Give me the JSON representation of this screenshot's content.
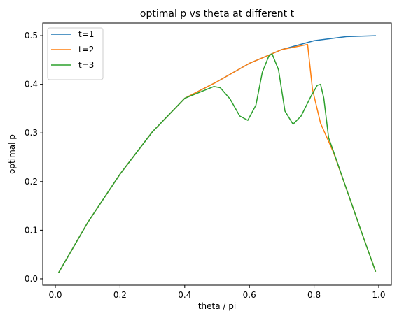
{
  "chart_data": {
    "type": "line",
    "title": "optimal p vs theta at different t",
    "xlabel": "theta / pi",
    "ylabel": "optimal p",
    "xlim": [
      -0.039,
      1.039
    ],
    "ylim": [
      -0.013,
      0.526
    ],
    "xticks": [
      0.0,
      0.2,
      0.4,
      0.6,
      0.8,
      1.0
    ],
    "xtick_labels": [
      "0.0",
      "0.2",
      "0.4",
      "0.6",
      "0.8",
      "1.0"
    ],
    "yticks": [
      0.0,
      0.1,
      0.2,
      0.3,
      0.4,
      0.5
    ],
    "ytick_labels": [
      "0.0",
      "0.1",
      "0.2",
      "0.3",
      "0.4",
      "0.5"
    ],
    "grid": false,
    "legend_position": "top-left",
    "series": [
      {
        "name": "t=1",
        "color": "#1f77b4",
        "x": [
          0.01,
          0.1,
          0.2,
          0.3,
          0.4,
          0.5,
          0.6,
          0.7,
          0.8,
          0.9,
          0.99
        ],
        "y": [
          0.0125,
          0.1158,
          0.2155,
          0.3023,
          0.3712,
          0.4054,
          0.4432,
          0.4714,
          0.4897,
          0.4981,
          0.5
        ]
      },
      {
        "name": "t=2",
        "color": "#ff7f0e",
        "x": [
          0.01,
          0.1,
          0.2,
          0.3,
          0.4,
          0.5,
          0.6,
          0.7,
          0.78,
          0.795,
          0.82,
          0.86,
          0.9,
          0.95,
          0.99
        ],
        "y": [
          0.0125,
          0.1158,
          0.2155,
          0.3023,
          0.3712,
          0.4054,
          0.4432,
          0.4714,
          0.482,
          0.39,
          0.32,
          0.26,
          0.185,
          0.09,
          0.0155
        ]
      },
      {
        "name": "t=3",
        "color": "#2ca02c",
        "x": [
          0.01,
          0.1,
          0.2,
          0.3,
          0.4,
          0.49,
          0.51,
          0.54,
          0.57,
          0.595,
          0.62,
          0.64,
          0.66,
          0.67,
          0.69,
          0.71,
          0.735,
          0.76,
          0.79,
          0.81,
          0.82,
          0.83,
          0.845,
          0.86,
          0.9,
          0.95,
          0.99
        ],
        "y": [
          0.0125,
          0.1158,
          0.2155,
          0.3023,
          0.3712,
          0.3955,
          0.393,
          0.37,
          0.335,
          0.326,
          0.357,
          0.425,
          0.458,
          0.463,
          0.43,
          0.345,
          0.318,
          0.335,
          0.375,
          0.398,
          0.4,
          0.372,
          0.29,
          0.262,
          0.185,
          0.09,
          0.0155
        ]
      }
    ]
  }
}
